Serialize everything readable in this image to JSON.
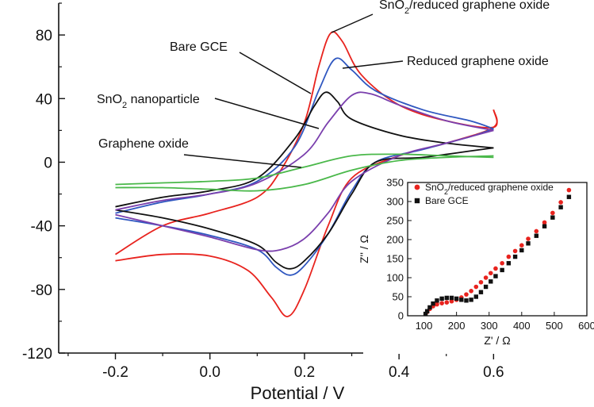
{
  "chart_data": [
    {
      "type": "line",
      "xlabel": "Potential / V",
      "ylabel": "",
      "xlim": [
        -0.32,
        0.69
      ],
      "ylim": [
        -120,
        100
      ],
      "x_ticks": [
        "-0.2",
        "0.0",
        "0.2",
        "0.4",
        "0.6"
      ],
      "y_ticks": [
        "80",
        "40",
        "0",
        "-40",
        "-80",
        "-120"
      ],
      "x_tick_values": [
        -0.2,
        0.0,
        0.2,
        0.4,
        0.6
      ],
      "y_tick_values": [
        80,
        40,
        0,
        -40,
        -80,
        -120
      ],
      "grid": false,
      "series": [
        {
          "name": "SnO2/reduced graphene oxide",
          "color": "#e8231e",
          "forward": [
            [
              -0.2,
              -58
            ],
            [
              -0.1,
              -40
            ],
            [
              0.0,
              -32
            ],
            [
              0.1,
              -22
            ],
            [
              0.15,
              -5
            ],
            [
              0.2,
              25
            ],
            [
              0.23,
              60
            ],
            [
              0.255,
              81
            ],
            [
              0.28,
              76
            ],
            [
              0.32,
              55
            ],
            [
              0.4,
              36
            ],
            [
              0.5,
              26
            ],
            [
              0.6,
              22
            ],
            [
              0.6,
              33
            ]
          ],
          "reverse": [
            [
              0.6,
              33
            ],
            [
              0.6,
              22
            ],
            [
              0.5,
              12
            ],
            [
              0.4,
              4
            ],
            [
              0.3,
              -10
            ],
            [
              0.25,
              -40
            ],
            [
              0.2,
              -80
            ],
            [
              0.165,
              -97
            ],
            [
              0.13,
              -85
            ],
            [
              0.08,
              -68
            ],
            [
              0.0,
              -59
            ],
            [
              -0.1,
              -58
            ],
            [
              -0.2,
              -62
            ]
          ]
        },
        {
          "name": "Reduced graphene oxide",
          "color": "#2f57c0",
          "forward": [
            [
              -0.2,
              -32
            ],
            [
              -0.1,
              -25
            ],
            [
              0.0,
              -20
            ],
            [
              0.1,
              -12
            ],
            [
              0.18,
              10
            ],
            [
              0.23,
              45
            ],
            [
              0.265,
              65
            ],
            [
              0.3,
              58
            ],
            [
              0.35,
              45
            ],
            [
              0.45,
              33
            ],
            [
              0.55,
              26
            ],
            [
              0.6,
              21
            ]
          ],
          "reverse": [
            [
              0.6,
              21
            ],
            [
              0.55,
              16
            ],
            [
              0.45,
              8
            ],
            [
              0.35,
              0
            ],
            [
              0.3,
              -18
            ],
            [
              0.25,
              -45
            ],
            [
              0.2,
              -65
            ],
            [
              0.17,
              -71
            ],
            [
              0.14,
              -66
            ],
            [
              0.1,
              -55
            ],
            [
              0.0,
              -46
            ],
            [
              -0.1,
              -40
            ],
            [
              -0.2,
              -35
            ]
          ]
        },
        {
          "name": "Bare GCE",
          "color": "#111111",
          "forward": [
            [
              -0.2,
              -28
            ],
            [
              -0.1,
              -22
            ],
            [
              0.0,
              -18
            ],
            [
              0.1,
              -10
            ],
            [
              0.18,
              15
            ],
            [
              0.22,
              35
            ],
            [
              0.245,
              44
            ],
            [
              0.27,
              38
            ],
            [
              0.3,
              27
            ],
            [
              0.4,
              17
            ],
            [
              0.5,
              12
            ],
            [
              0.6,
              9
            ]
          ],
          "reverse": [
            [
              0.6,
              9
            ],
            [
              0.55,
              7
            ],
            [
              0.45,
              3
            ],
            [
              0.35,
              0
            ],
            [
              0.3,
              -20
            ],
            [
              0.25,
              -45
            ],
            [
              0.2,
              -62
            ],
            [
              0.17,
              -67
            ],
            [
              0.14,
              -63
            ],
            [
              0.1,
              -52
            ],
            [
              0.0,
              -42
            ],
            [
              -0.1,
              -35
            ],
            [
              -0.2,
              -30
            ]
          ]
        },
        {
          "name": "SnO2 nanoparticle",
          "color": "#7a3fad",
          "forward": [
            [
              -0.2,
              -30
            ],
            [
              -0.1,
              -24
            ],
            [
              0.0,
              -20
            ],
            [
              0.1,
              -13
            ],
            [
              0.2,
              5
            ],
            [
              0.25,
              25
            ],
            [
              0.3,
              42
            ],
            [
              0.34,
              43
            ],
            [
              0.4,
              36
            ],
            [
              0.5,
              26
            ],
            [
              0.6,
              20
            ]
          ],
          "reverse": [
            [
              0.6,
              20
            ],
            [
              0.5,
              12
            ],
            [
              0.4,
              4
            ],
            [
              0.3,
              -12
            ],
            [
              0.25,
              -32
            ],
            [
              0.2,
              -48
            ],
            [
              0.15,
              -55
            ],
            [
              0.1,
              -55
            ],
            [
              0.0,
              -47
            ],
            [
              -0.1,
              -40
            ],
            [
              -0.2,
              -33
            ]
          ]
        },
        {
          "name": "Graphene oxide",
          "color": "#4ab84a",
          "forward": [
            [
              -0.2,
              -14
            ],
            [
              -0.1,
              -13
            ],
            [
              0.0,
              -12
            ],
            [
              0.1,
              -10
            ],
            [
              0.2,
              -3
            ],
            [
              0.3,
              4
            ],
            [
              0.4,
              5
            ],
            [
              0.5,
              4
            ],
            [
              0.6,
              3
            ]
          ],
          "reverse": [
            [
              0.6,
              4
            ],
            [
              0.5,
              3
            ],
            [
              0.4,
              1
            ],
            [
              0.3,
              -5
            ],
            [
              0.2,
              -14
            ],
            [
              0.1,
              -18
            ],
            [
              0.0,
              -17
            ],
            [
              -0.1,
              -16
            ],
            [
              -0.2,
              -16
            ]
          ]
        }
      ],
      "annotations": [
        {
          "label_main": "SnO",
          "label_sub": "2",
          "label_rest": "/reduced graphene oxide",
          "target_series": "SnO2/reduced graphene oxide",
          "target": [
            0.26,
            80
          ]
        },
        {
          "label": "Bare GCE",
          "target_series": "Bare GCE",
          "target": [
            0.245,
            42
          ]
        },
        {
          "label": "Reduced graphene oxide",
          "target_series": "Reduced graphene oxide",
          "target": [
            0.29,
            60
          ]
        },
        {
          "label_main": "SnO",
          "label_sub": "2",
          "label_rest": " nanoparticle",
          "target_series": "SnO2 nanoparticle",
          "target": [
            0.235,
            20
          ]
        },
        {
          "label": "Graphene oxide",
          "target_series": "Graphene oxide",
          "target": [
            0.21,
            -4
          ]
        }
      ]
    },
    {
      "type": "scatter",
      "xlabel": "Z' / Ω",
      "ylabel": "Z'' / Ω",
      "xlim": [
        50,
        600
      ],
      "ylim": [
        0,
        350
      ],
      "x_ticks": [
        "100",
        "200",
        "300",
        "400",
        "500",
        "600"
      ],
      "y_ticks": [
        "0",
        "50",
        "100",
        "150",
        "200",
        "250",
        "300",
        "350"
      ],
      "x_tick_values": [
        100,
        200,
        300,
        400,
        500,
        600
      ],
      "y_tick_values": [
        0,
        50,
        100,
        150,
        200,
        250,
        300,
        350
      ],
      "legend_position": "top-left",
      "series": [
        {
          "name_main": "SnO",
          "name_sub": "2",
          "name_rest": "/reduced graphene oxide",
          "marker": "circle",
          "color": "#e8231e",
          "points": [
            [
              110,
              10
            ],
            [
              118,
              18
            ],
            [
              128,
              25
            ],
            [
              140,
              30
            ],
            [
              155,
              33
            ],
            [
              170,
              35
            ],
            [
              185,
              38
            ],
            [
              200,
              42
            ],
            [
              215,
              48
            ],
            [
              230,
              56
            ],
            [
              245,
              65
            ],
            [
              260,
              76
            ],
            [
              275,
              88
            ],
            [
              290,
              100
            ],
            [
              305,
              112
            ],
            [
              320,
              124
            ],
            [
              340,
              138
            ],
            [
              360,
              155
            ],
            [
              380,
              170
            ],
            [
              400,
              185
            ],
            [
              420,
              202
            ],
            [
              445,
              222
            ],
            [
              470,
              245
            ],
            [
              495,
              270
            ],
            [
              520,
              298
            ],
            [
              545,
              330
            ]
          ]
        },
        {
          "name": "Bare GCE",
          "marker": "square",
          "color": "#111111",
          "points": [
            [
              105,
              5
            ],
            [
              110,
              12
            ],
            [
              118,
              22
            ],
            [
              128,
              32
            ],
            [
              140,
              40
            ],
            [
              155,
              45
            ],
            [
              170,
              47
            ],
            [
              185,
              47
            ],
            [
              200,
              45
            ],
            [
              215,
              42
            ],
            [
              230,
              40
            ],
            [
              245,
              42
            ],
            [
              260,
              50
            ],
            [
              275,
              62
            ],
            [
              290,
              76
            ],
            [
              305,
              90
            ],
            [
              320,
              104
            ],
            [
              340,
              120
            ],
            [
              360,
              138
            ],
            [
              380,
              155
            ],
            [
              400,
              172
            ],
            [
              420,
              190
            ],
            [
              445,
              210
            ],
            [
              470,
              235
            ],
            [
              495,
              258
            ],
            [
              520,
              285
            ],
            [
              545,
              312
            ]
          ]
        }
      ]
    }
  ]
}
